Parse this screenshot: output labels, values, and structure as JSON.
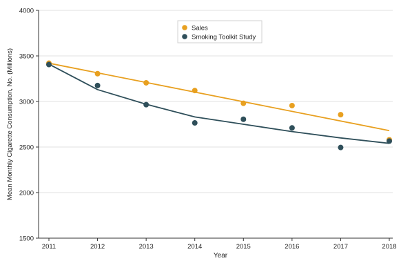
{
  "chart_data": {
    "type": "scatter",
    "xlabel": "Year",
    "ylabel": "Mean Monthly Cigarette Consumption, No. (Millions)",
    "x": [
      2011,
      2012,
      2013,
      2014,
      2015,
      2016,
      2017,
      2018
    ],
    "x_ticks": [
      "2011",
      "2012",
      "2013",
      "2014",
      "2015",
      "2016",
      "2017",
      "2018"
    ],
    "ylim": [
      1500,
      4000
    ],
    "y_ticks": [
      1500,
      2000,
      2500,
      3000,
      3500,
      4000
    ],
    "grid": true,
    "legend_position": "top-center",
    "series": [
      {
        "name": "Sales",
        "color": "#E8A020",
        "points": [
          3420,
          3305,
          3205,
          3120,
          2980,
          2955,
          2855,
          2580
        ],
        "trend": [
          3420,
          2680
        ]
      },
      {
        "name": "Smoking Toolkit Study",
        "color": "#2F4F5A",
        "points": [
          3405,
          3175,
          2965,
          2765,
          2805,
          2710,
          2495,
          2565
        ],
        "trend_curve": [
          3410,
          3130,
          2970,
          2830,
          2750,
          2670,
          2600,
          2540
        ]
      }
    ]
  }
}
